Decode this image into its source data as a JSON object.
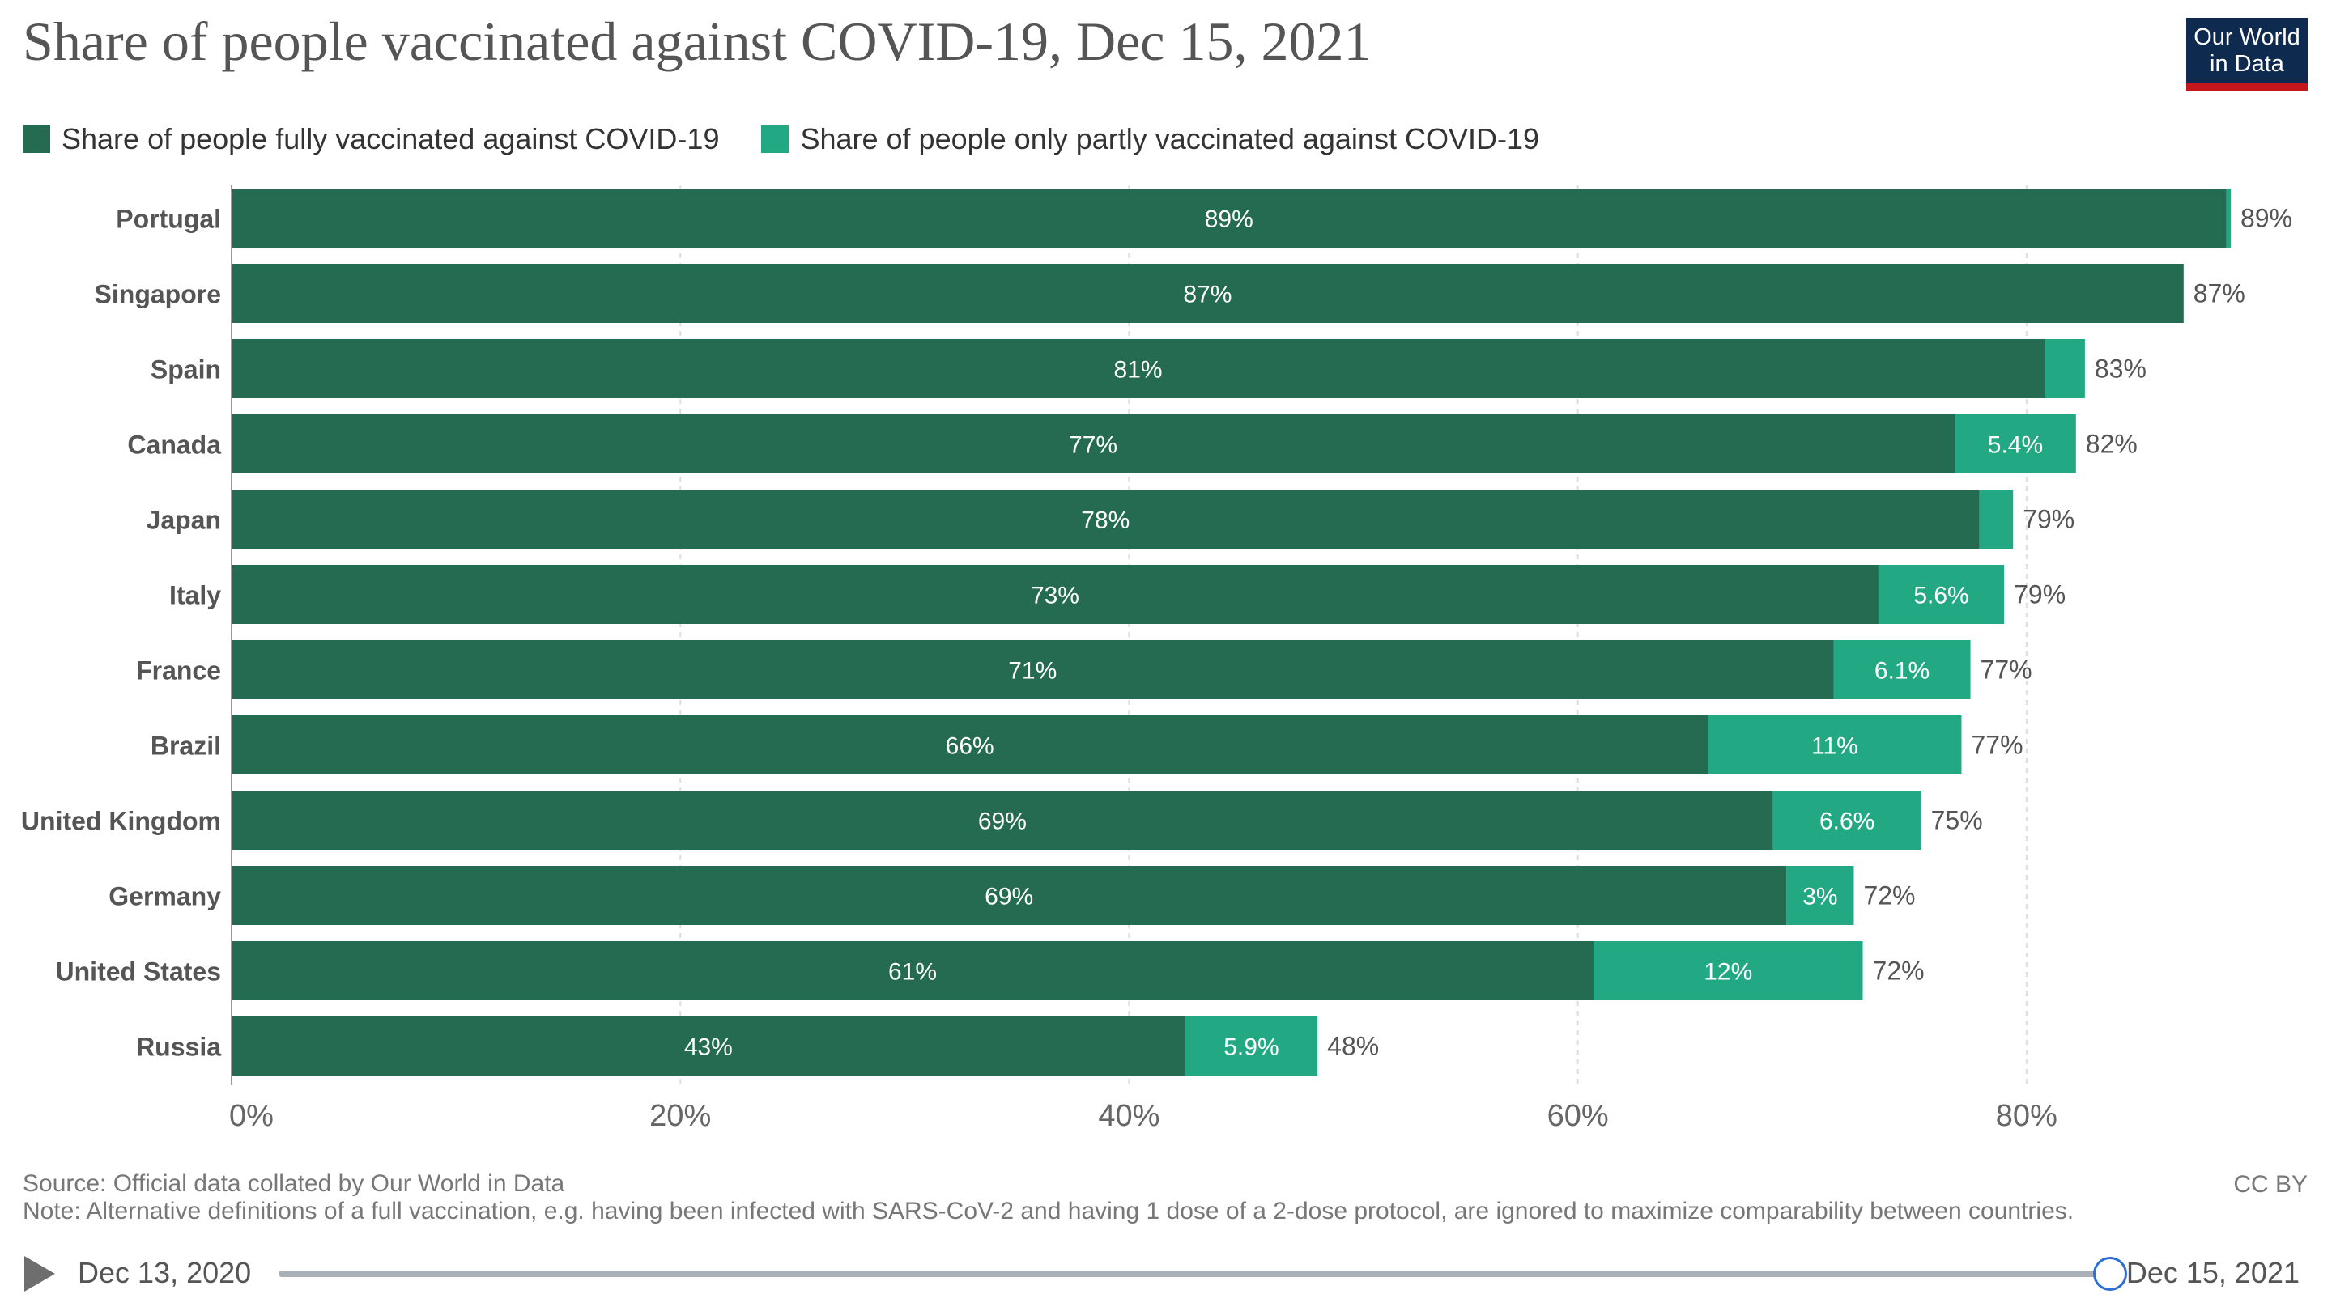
{
  "title": "Share of people vaccinated against COVID-19, Dec 15, 2021",
  "logo": {
    "line1": "Our World",
    "line2": "in Data"
  },
  "legend": [
    {
      "label": "Share of people fully vaccinated against COVID-19",
      "color": "#246b52"
    },
    {
      "label": "Share of people only partly vaccinated against COVID-19",
      "color": "#23a884"
    }
  ],
  "chart_data": {
    "type": "bar",
    "orientation": "horizontal",
    "stacked": true,
    "categories": [
      "Portugal",
      "Singapore",
      "Spain",
      "Canada",
      "Japan",
      "Italy",
      "France",
      "Brazil",
      "United Kingdom",
      "Germany",
      "United States",
      "Russia"
    ],
    "series": [
      {
        "name": "Share of people fully vaccinated against COVID-19",
        "color": "#246b52",
        "values": [
          88.9,
          87.0,
          80.8,
          76.8,
          77.9,
          73.4,
          71.4,
          65.8,
          68.7,
          69.3,
          60.7,
          42.5
        ],
        "labels": [
          "89%",
          "87%",
          "81%",
          "77%",
          "78%",
          "73%",
          "71%",
          "66%",
          "69%",
          "69%",
          "61%",
          "43%"
        ]
      },
      {
        "name": "Share of people only partly vaccinated against COVID-19",
        "color": "#23a884",
        "values": [
          0.2,
          0.0,
          1.8,
          5.4,
          1.5,
          5.6,
          6.1,
          11.3,
          6.6,
          3.0,
          12.0,
          5.9
        ],
        "labels": [
          "",
          "",
          "",
          "5.4%",
          "",
          "5.6%",
          "6.1%",
          "11%",
          "6.6%",
          "3%",
          "12%",
          "5.9%"
        ]
      }
    ],
    "totals": [
      "89%",
      "87%",
      "83%",
      "82%",
      "79%",
      "79%",
      "77%",
      "77%",
      "75%",
      "72%",
      "72%",
      "48%"
    ],
    "xlim": [
      0,
      89.1
    ],
    "xticks": [
      0,
      20,
      40,
      60,
      80
    ],
    "xtick_labels": [
      "0%",
      "20%",
      "40%",
      "60%",
      "80%"
    ],
    "grid": true,
    "legend_position": "top-left"
  },
  "footer": {
    "source": "Source: Official data collated by Our World in Data",
    "note": "Note: Alternative definitions of a full vaccination, e.g. having been infected with SARS-CoV-2 and having 1 dose of a 2-dose protocol, are ignored to maximize comparability between countries.",
    "license": "CC BY"
  },
  "timeline": {
    "start": "Dec 13, 2020",
    "end": "Dec 15, 2021",
    "progress": 1.0
  }
}
